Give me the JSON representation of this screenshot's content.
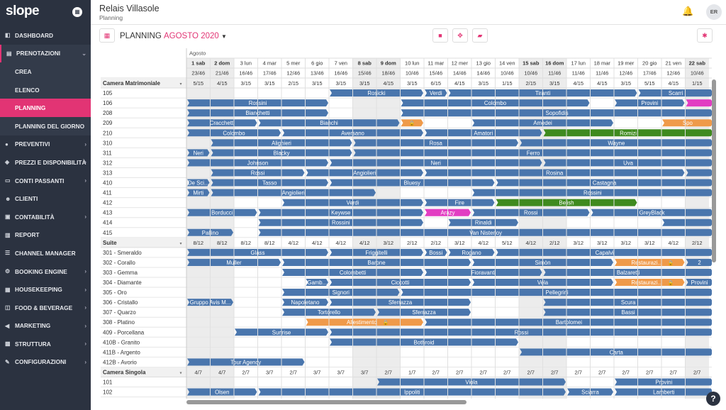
{
  "app": {
    "logo": "slope",
    "calendar_icon": "calendar-icon"
  },
  "sidebar": {
    "items": [
      {
        "label": "DASHBOARD",
        "icon": "dashboard-icon",
        "chev": false,
        "type": "main"
      },
      {
        "label": "PRENOTAZIONI",
        "icon": "bookings-icon",
        "chev": true,
        "type": "open"
      },
      {
        "label": "CREA",
        "icon": "",
        "chev": false,
        "type": "sub"
      },
      {
        "label": "ELENCO",
        "icon": "",
        "chev": false,
        "type": "sub"
      },
      {
        "label": "PLANNING",
        "icon": "",
        "chev": false,
        "type": "active"
      },
      {
        "label": "PLANNING DEL GIORNO",
        "icon": "",
        "chev": false,
        "type": "sub"
      },
      {
        "label": "PREVENTIVI",
        "icon": "quotes-icon",
        "chev": true,
        "type": "main"
      },
      {
        "label": "PREZZI E DISPONIBILITÀ",
        "icon": "prices-icon",
        "chev": true,
        "type": "main"
      },
      {
        "label": "CONTI PASSANTI",
        "icon": "accounts-icon",
        "chev": true,
        "type": "main"
      },
      {
        "label": "CLIENTI",
        "icon": "clients-icon",
        "chev": false,
        "type": "main"
      },
      {
        "label": "CONTABILITÀ",
        "icon": "accounting-icon",
        "chev": true,
        "type": "main"
      },
      {
        "label": "REPORT",
        "icon": "report-icon",
        "chev": false,
        "type": "main"
      },
      {
        "label": "CHANNEL MANAGER",
        "icon": "channel-icon",
        "chev": false,
        "type": "main"
      },
      {
        "label": "BOOKING ENGINE",
        "icon": "booking-engine-icon",
        "chev": true,
        "type": "main"
      },
      {
        "label": "HOUSEKEEPING",
        "icon": "housekeeping-icon",
        "chev": true,
        "type": "main"
      },
      {
        "label": "FOOD & BEVERAGE",
        "icon": "food-icon",
        "chev": true,
        "type": "main"
      },
      {
        "label": "MARKETING",
        "icon": "marketing-icon",
        "chev": true,
        "type": "main"
      },
      {
        "label": "STRUTTURA",
        "icon": "structure-icon",
        "chev": true,
        "type": "main"
      },
      {
        "label": "CONFIGURAZIONI",
        "icon": "settings-icon",
        "chev": true,
        "type": "main"
      }
    ]
  },
  "header": {
    "hotel": "Relais Villasole",
    "subtitle": "Planning",
    "user_initials": "ER"
  },
  "toolbar": {
    "title": "PLANNING",
    "month": "AGOSTO 2020"
  },
  "colors": {
    "blue": "#4a76ad",
    "green": "#3f8a1f",
    "orange": "#ef9a4a",
    "magenta": "#e23dc2",
    "weekend": "#ececec"
  },
  "month_label": "Agosto",
  "days": [
    {
      "d": "1 sab",
      "bold": true,
      "we": true
    },
    {
      "d": "2 dom",
      "bold": true,
      "we": true
    },
    {
      "d": "3 lun"
    },
    {
      "d": "4 mar"
    },
    {
      "d": "5 mer"
    },
    {
      "d": "6 gio"
    },
    {
      "d": "7 ven"
    },
    {
      "d": "8 sab",
      "bold": true,
      "we": true
    },
    {
      "d": "9 dom",
      "bold": true,
      "we": true
    },
    {
      "d": "10 lun"
    },
    {
      "d": "11 mar"
    },
    {
      "d": "12 mer"
    },
    {
      "d": "13 gio"
    },
    {
      "d": "14 ven"
    },
    {
      "d": "15 sab",
      "bold": true,
      "we": true
    },
    {
      "d": "16 dom",
      "bold": true,
      "we": true
    },
    {
      "d": "17 lun"
    },
    {
      "d": "18 mar"
    },
    {
      "d": "19 mer"
    },
    {
      "d": "20 gio"
    },
    {
      "d": "21 ven"
    },
    {
      "d": "22 sab",
      "bold": true,
      "we": true
    }
  ],
  "totals": [
    "23/46",
    "21/46",
    "16/46",
    "17/46",
    "12/46",
    "13/46",
    "16/46",
    "15/46",
    "18/46",
    "10/46",
    "15/46",
    "14/46",
    "14/46",
    "10/46",
    "10/46",
    "11/46",
    "11/46",
    "11/46",
    "12/46",
    "17/46",
    "12/46",
    "10/46"
  ],
  "sections": [
    {
      "name": "Camera Matrimoniale",
      "counts": [
        "5/15",
        "4/15",
        "3/15",
        "3/15",
        "2/15",
        "3/15",
        "3/15",
        "3/15",
        "4/15",
        "3/15",
        "6/15",
        "4/15",
        "3/15",
        "1/15",
        "2/15",
        "3/15",
        "4/15",
        "4/15",
        "3/15",
        "5/15",
        "4/15",
        "1/15"
      ],
      "rooms": [
        {
          "name": "105",
          "b": [
            {
              "s": 6,
              "e": 10,
              "l": "Rosicki"
            },
            {
              "s": 10,
              "e": 11,
              "l": "Verdi"
            },
            {
              "s": 11,
              "e": 19,
              "l": "Tiranti"
            },
            {
              "s": 19,
              "e": 22.2,
              "l": "Scarri"
            }
          ]
        },
        {
          "name": "106",
          "b": [
            {
              "s": 0,
              "e": 6,
              "l": "Rossini"
            },
            {
              "s": 9,
              "e": 17,
              "l": "Colombo"
            },
            {
              "s": 18,
              "e": 21,
              "l": "Provini"
            },
            {
              "s": 21,
              "e": 22.2,
              "l": "",
              "c": "magenta"
            }
          ]
        },
        {
          "name": "208",
          "b": [
            {
              "s": 0,
              "e": 6,
              "l": "Bianchetti"
            },
            {
              "s": 9,
              "e": 22.2,
              "l": "Sopofidis"
            }
          ]
        },
        {
          "name": "209",
          "b": [
            {
              "s": 0,
              "e": 3,
              "l": "Cracchetti"
            },
            {
              "s": 3,
              "e": 9,
              "l": "Bianchi"
            },
            {
              "s": 9,
              "e": 10,
              "l": "",
              "c": "orange",
              "lock": true
            },
            {
              "s": 12,
              "e": 18,
              "l": "Amedei"
            },
            {
              "s": 20,
              "e": 22.2,
              "l": "Spo",
              "c": "orange"
            }
          ]
        },
        {
          "name": "210",
          "b": [
            {
              "s": 0,
              "e": 4,
              "l": "Colombo"
            },
            {
              "s": 4,
              "e": 10,
              "l": "Aversano"
            },
            {
              "s": 10,
              "e": 15,
              "l": "Amatori"
            },
            {
              "s": 15,
              "e": 22.2,
              "l": "Romizi",
              "c": "green"
            }
          ]
        },
        {
          "name": "310",
          "b": [
            {
              "s": 1,
              "e": 7,
              "l": "Alighieri"
            },
            {
              "s": 7,
              "e": 14,
              "l": "Rosa"
            },
            {
              "s": 14,
              "e": 22.2,
              "l": "Wayne"
            }
          ]
        },
        {
          "name": "311",
          "b": [
            {
              "s": 0,
              "e": 1,
              "l": "Neri"
            },
            {
              "s": 1,
              "e": 7,
              "l": "Blacky"
            },
            {
              "s": 7,
              "e": 22.2,
              "l": "Ferro"
            }
          ]
        },
        {
          "name": "312",
          "b": [
            {
              "s": 0,
              "e": 6,
              "l": "Johnson"
            },
            {
              "s": 6,
              "e": 15,
              "l": "Neri"
            },
            {
              "s": 15,
              "e": 22.2,
              "l": "Uva"
            }
          ]
        },
        {
          "name": "313",
          "b": [
            {
              "s": 1,
              "e": 5,
              "l": "Rossi"
            },
            {
              "s": 5,
              "e": 10,
              "l": "Angiolieri"
            },
            {
              "s": 10,
              "e": 21,
              "l": "Rosina"
            },
            {
              "s": 21,
              "e": 22.2,
              "l": ""
            }
          ]
        },
        {
          "name": "410",
          "b": [
            {
              "s": 0,
              "e": 1,
              "l": "De Sci..."
            },
            {
              "s": 1,
              "e": 6,
              "l": "Tasso"
            },
            {
              "s": 6,
              "e": 13,
              "l": "Bluesy"
            },
            {
              "s": 13,
              "e": 22.2,
              "l": "Castagna"
            }
          ]
        },
        {
          "name": "411",
          "b": [
            {
              "s": 0,
              "e": 1,
              "l": "Mirti"
            },
            {
              "s": 1,
              "e": 8,
              "l": "Angiolieri"
            },
            {
              "s": 12,
              "e": 22.2,
              "l": "Rossini"
            }
          ]
        },
        {
          "name": "412",
          "b": [
            {
              "s": 4,
              "e": 10,
              "l": "Verdi"
            },
            {
              "s": 10,
              "e": 13,
              "l": "Fire"
            },
            {
              "s": 13,
              "e": 19,
              "l": "Belish",
              "c": "green"
            }
          ]
        },
        {
          "name": "413",
          "b": [
            {
              "s": 0,
              "e": 3,
              "l": "Borducci"
            },
            {
              "s": 3,
              "e": 10,
              "l": "Keywse"
            },
            {
              "s": 10,
              "e": 12,
              "l": "Arazy",
              "c": "magenta"
            },
            {
              "s": 12,
              "e": 17,
              "l": "Rossi"
            },
            {
              "s": 17,
              "e": 22.2,
              "l": "GreyBlack"
            }
          ]
        },
        {
          "name": "414",
          "b": [
            {
              "s": 3,
              "e": 10,
              "l": "Rossini"
            },
            {
              "s": 11,
              "e": 14,
              "l": "Rinaldi"
            },
            {
              "s": 20,
              "e": 22.2,
              "l": ""
            }
          ]
        },
        {
          "name": "415",
          "b": [
            {
              "s": 0,
              "e": 2,
              "l": "Pallino"
            },
            {
              "s": 3,
              "e": 22.2,
              "l": "Van Nisterloy"
            }
          ]
        }
      ]
    },
    {
      "name": "Suite",
      "counts": [
        "8/12",
        "8/12",
        "8/12",
        "8/12",
        "4/12",
        "4/12",
        "4/12",
        "4/12",
        "3/12",
        "2/12",
        "2/12",
        "3/12",
        "4/12",
        "5/12",
        "4/12",
        "2/12",
        "3/12",
        "3/12",
        "3/12",
        "3/12",
        "4/12",
        "2/12"
      ],
      "rooms": [
        {
          "name": "301 - Smeraldo",
          "b": [
            {
              "s": 0,
              "e": 6,
              "l": "Glass"
            },
            {
              "s": 6,
              "e": 10,
              "l": "Friggitelli"
            },
            {
              "s": 10,
              "e": 11,
              "l": "Bossi"
            },
            {
              "s": 11,
              "e": 13,
              "l": "Rogano"
            },
            {
              "s": 13,
              "e": 22.2,
              "l": "Capalvi"
            }
          ]
        },
        {
          "name": "302 - Corallo",
          "b": [
            {
              "s": 0,
              "e": 4,
              "l": "Muller"
            },
            {
              "s": 4,
              "e": 12,
              "l": "Barone"
            },
            {
              "s": 12,
              "e": 18,
              "l": "Simòn"
            },
            {
              "s": 18,
              "e": 21,
              "l": "Restaurazi...",
              "c": "orange",
              "lock": true
            },
            {
              "s": 21,
              "e": 22.2,
              "l": "2"
            }
          ]
        },
        {
          "name": "303 - Gemma",
          "b": [
            {
              "s": 4,
              "e": 10,
              "l": "Colombetti"
            },
            {
              "s": 10,
              "e": 15,
              "l": "Fioravanti"
            },
            {
              "s": 15,
              "e": 22.2,
              "l": "Balzaretti"
            }
          ]
        },
        {
          "name": "304 - Diamante",
          "b": [
            {
              "s": 5,
              "e": 6,
              "l": "Gamb..."
            },
            {
              "s": 6,
              "e": 12,
              "l": "Ciccotti"
            },
            {
              "s": 12,
              "e": 18,
              "l": "Vela"
            },
            {
              "s": 18,
              "e": 21,
              "l": "Restaurazi...",
              "c": "orange",
              "lock": true
            },
            {
              "s": 21,
              "e": 22.2,
              "l": "Provini"
            }
          ]
        },
        {
          "name": "305 - Oro",
          "b": [
            {
              "s": 4,
              "e": 9,
              "l": "Signori"
            },
            {
              "s": 9,
              "e": 22.2,
              "l": "Pellegrini"
            }
          ]
        },
        {
          "name": "306 - Cristallo",
          "b": [
            {
              "s": 0,
              "e": 2,
              "l": "Gruppo Avis M..."
            },
            {
              "s": 4,
              "e": 6,
              "l": "Napoletano"
            },
            {
              "s": 6,
              "e": 12,
              "l": "Sferrazza"
            },
            {
              "s": 15,
              "e": 22.2,
              "l": "Scura"
            }
          ]
        },
        {
          "name": "307 - Quarzo",
          "b": [
            {
              "s": 4,
              "e": 8,
              "l": "Tortorello"
            },
            {
              "s": 8,
              "e": 12,
              "l": "Sferrazza"
            },
            {
              "s": 15,
              "e": 22.2,
              "l": "Bassi"
            }
          ]
        },
        {
          "name": "308 - Platino",
          "b": [
            {
              "s": 5,
              "e": 10,
              "l": "Allestimento",
              "c": "orange",
              "lock": true
            },
            {
              "s": 10,
              "e": 22.2,
              "l": "Bartolomei"
            }
          ]
        },
        {
          "name": "409 - Porcellana",
          "b": [
            {
              "s": 2,
              "e": 6,
              "l": "Sunrise"
            },
            {
              "s": 6,
              "e": 22.2,
              "l": "Rossi"
            }
          ]
        },
        {
          "name": "410B - Granito",
          "b": [
            {
              "s": 6,
              "e": 14,
              "l": "Bothroid"
            }
          ]
        },
        {
          "name": "411B - Argento",
          "b": [
            {
              "s": 14,
              "e": 22.2,
              "l": "Carta"
            }
          ]
        },
        {
          "name": "412B - Avorio",
          "b": [
            {
              "s": 0,
              "e": 5,
              "l": "Tour Agency"
            }
          ]
        }
      ]
    },
    {
      "name": "Camera Singola",
      "counts": [
        "4/7",
        "4/7",
        "2/7",
        "3/7",
        "2/7",
        "3/7",
        "3/7",
        "3/7",
        "2/7",
        "1/7",
        "2/7",
        "2/7",
        "2/7",
        "2/7",
        "2/7",
        "2/7",
        "2/7",
        "2/7",
        "2/7",
        "2/7",
        "2/7",
        "2/7"
      ],
      "rooms": [
        {
          "name": "101",
          "b": [
            {
              "s": 8,
              "e": 16,
              "l": "Viola"
            },
            {
              "s": 18,
              "e": 22.2,
              "l": "Provini"
            }
          ]
        },
        {
          "name": "102",
          "b": [
            {
              "s": 0,
              "e": 3,
              "l": "Olsen"
            },
            {
              "s": 3,
              "e": 16,
              "l": "Ippoliti"
            },
            {
              "s": 16,
              "e": 18,
              "l": "Sciarra"
            },
            {
              "s": 18,
              "e": 22.2,
              "l": "Lamberti"
            }
          ]
        }
      ]
    }
  ]
}
